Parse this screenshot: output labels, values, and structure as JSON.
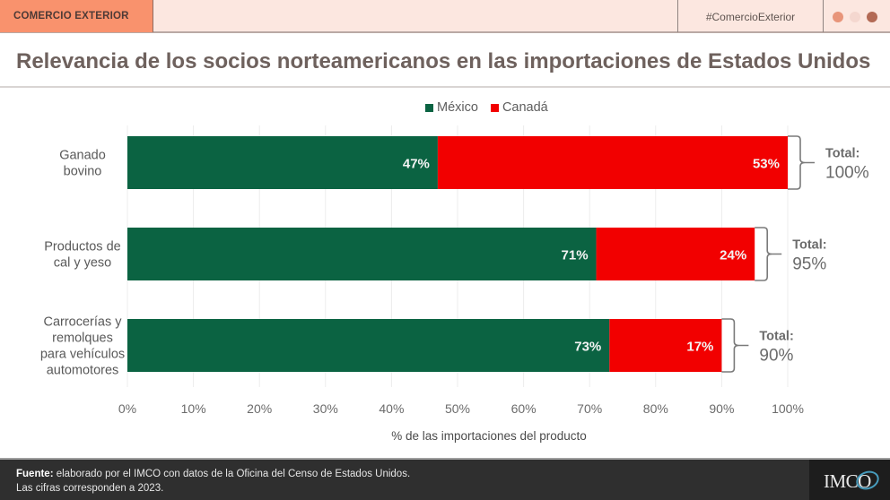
{
  "header": {
    "section_tag": "COMERCIO EXTERIOR",
    "hashtag": "#ComercioExterior",
    "dots": [
      "#e8957a",
      "#f4d7cf",
      "#b36a55"
    ]
  },
  "title": "Relevancia de los socios norteamericanos en las importaciones de Estados Unidos",
  "chart_data": {
    "type": "bar",
    "orientation": "horizontal",
    "stacked": true,
    "title": "Relevancia de los socios norteamericanos en las importaciones de Estados Unidos",
    "categories": [
      "Ganado bovino",
      "Productos de cal y yeso",
      "Carrocerías y remolques para vehículos automotores"
    ],
    "category_lines": [
      [
        "Ganado",
        "bovino"
      ],
      [
        "Productos de",
        "cal y yeso"
      ],
      [
        "Carrocerías y",
        "remolques",
        "para vehículos",
        "automotores"
      ]
    ],
    "series": [
      {
        "name": "México",
        "color": "#0b6342",
        "values": [
          47,
          71,
          73
        ],
        "labels": [
          "47%",
          "71%",
          "73%"
        ]
      },
      {
        "name": "Canadá",
        "color": "#f20000",
        "values": [
          53,
          24,
          17
        ],
        "labels": [
          "53%",
          "24%",
          "17%"
        ]
      }
    ],
    "totals": {
      "label": "Total:",
      "values": [
        100,
        95,
        90
      ],
      "labels": [
        "100%",
        "95%",
        "90%"
      ]
    },
    "xlabel": "% de las importaciones del producto",
    "ylabel": "",
    "xlim": [
      0,
      100
    ],
    "xticks": [
      0,
      10,
      20,
      30,
      40,
      50,
      60,
      70,
      80,
      90,
      100
    ],
    "xtick_labels": [
      "0%",
      "10%",
      "20%",
      "30%",
      "40%",
      "50%",
      "60%",
      "70%",
      "80%",
      "90%",
      "100%"
    ],
    "grid": true,
    "legend_position": "top-center"
  },
  "footer": {
    "source_label": "Fuente:",
    "source_text": " elaborado por el IMCO con datos de la Oficina del Censo de Estados Unidos.",
    "note": "Las cifras corresponden a 2023.",
    "logo": "IMCO"
  }
}
